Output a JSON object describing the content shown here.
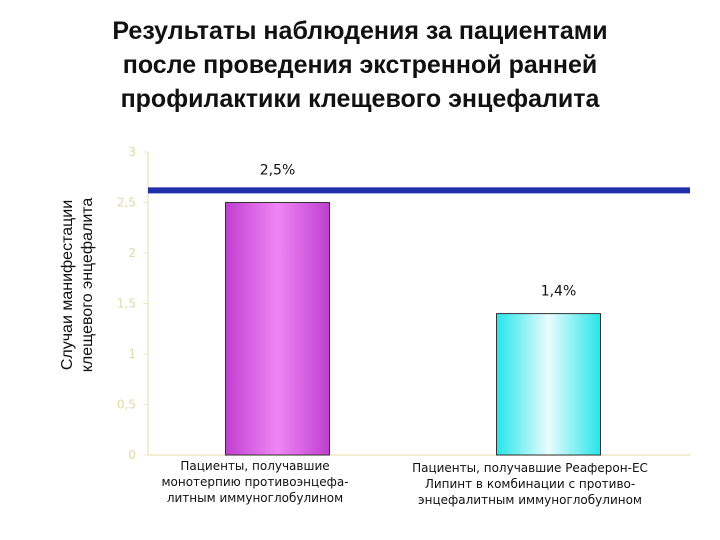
{
  "chart_data": {
    "type": "bar",
    "title_lines": [
      "Результаты наблюдения за пациентами",
      "после проведения экстренной ранней",
      "профилактики клещевого энцефалита"
    ],
    "ylabel_lines": [
      "Случаи манифестации",
      "клещевого энцефалита"
    ],
    "ylim": [
      0,
      3
    ],
    "yticks": [
      "0",
      "0,5",
      "1",
      "1,5",
      "2",
      "2,5",
      "3"
    ],
    "ytick_values": [
      0,
      0.5,
      1,
      1.5,
      2,
      2.5,
      3
    ],
    "categories": [
      {
        "label_lines": [
          "Пациенты, получавшие",
          "монотерпию противоэнцефа-",
          "литным иммуноглобулином"
        ]
      },
      {
        "label_lines": [
          "Пациенты, получавшие Реаферон-ЕС",
          "Липинт в комбинации с противо-",
          "энцефалитным иммуноглобулином"
        ]
      }
    ],
    "values": [
      2.5,
      1.4
    ],
    "data_labels": [
      "2,5%",
      "1,4%"
    ],
    "reference_line": {
      "value": 2.62,
      "color": "#1f2fa8"
    },
    "bar_colors": [
      {
        "edge": "#bf3fd0",
        "center": "#f086f6"
      },
      {
        "edge": "#27e6ea",
        "center": "#eafcff"
      }
    ],
    "grid": false,
    "tick_label_color": "#e2d9a8",
    "axis_color": "#ede7c4"
  }
}
